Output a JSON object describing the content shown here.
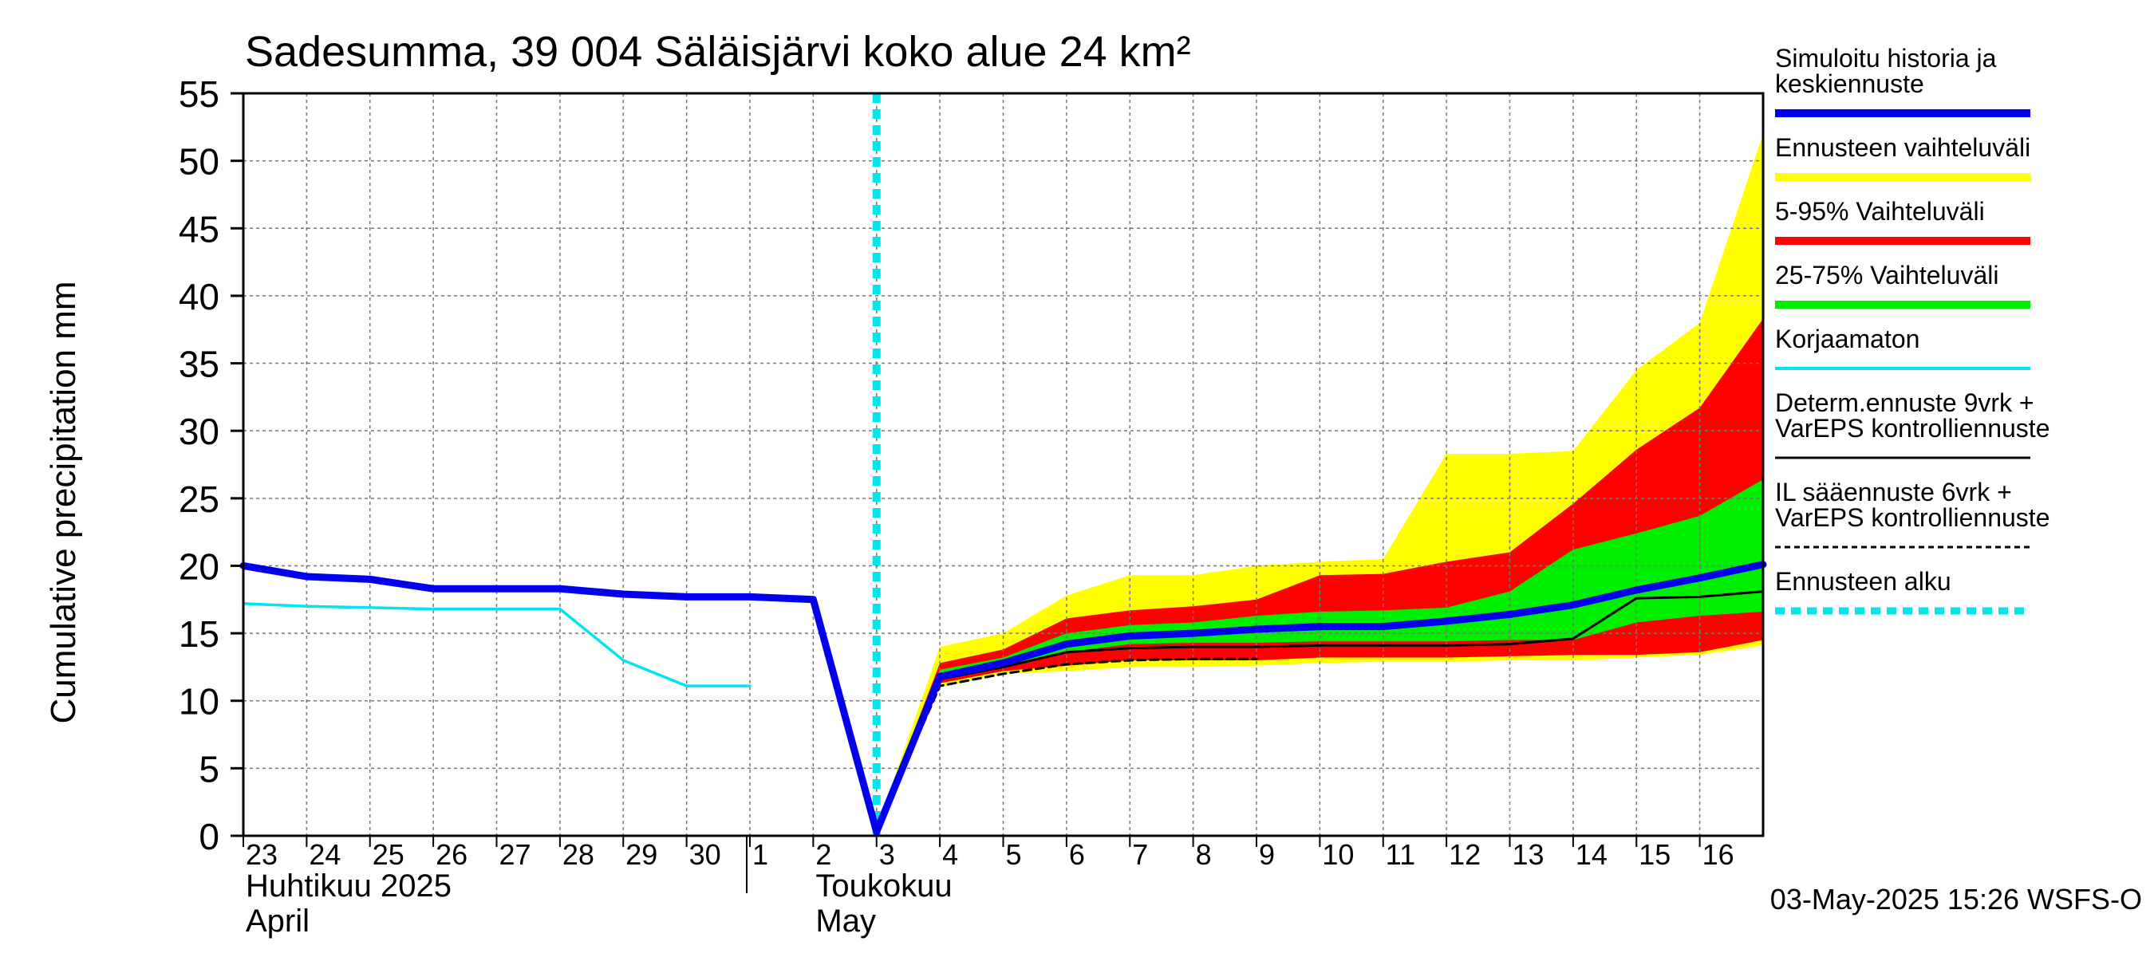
{
  "chart_data": {
    "type": "area",
    "title": "Sadesumma, 39 004 Säläisjärvi koko alue 24 km²",
    "ylabel": "Cumulative precipitation   mm",
    "ylim": [
      0,
      55
    ],
    "yticks": [
      0,
      5,
      10,
      15,
      20,
      25,
      30,
      35,
      40,
      45,
      50,
      55
    ],
    "x_range": [
      "2025-04-23",
      "2025-05-17"
    ],
    "grid": true,
    "day_ticks": [
      {
        "date": "2025-04-23",
        "label": "23"
      },
      {
        "date": "2025-04-24",
        "label": "24"
      },
      {
        "date": "2025-04-25",
        "label": "25"
      },
      {
        "date": "2025-04-26",
        "label": "26"
      },
      {
        "date": "2025-04-27",
        "label": "27"
      },
      {
        "date": "2025-04-28",
        "label": "28"
      },
      {
        "date": "2025-04-29",
        "label": "29"
      },
      {
        "date": "2025-04-30",
        "label": "30"
      },
      {
        "date": "2025-05-01",
        "label": "1"
      },
      {
        "date": "2025-05-02",
        "label": "2"
      },
      {
        "date": "2025-05-03",
        "label": "3"
      },
      {
        "date": "2025-05-04",
        "label": "4"
      },
      {
        "date": "2025-05-05",
        "label": "5"
      },
      {
        "date": "2025-05-06",
        "label": "6"
      },
      {
        "date": "2025-05-07",
        "label": "7"
      },
      {
        "date": "2025-05-08",
        "label": "8"
      },
      {
        "date": "2025-05-09",
        "label": "9"
      },
      {
        "date": "2025-05-10",
        "label": "10"
      },
      {
        "date": "2025-05-11",
        "label": "11"
      },
      {
        "date": "2025-05-12",
        "label": "12"
      },
      {
        "date": "2025-05-13",
        "label": "13"
      },
      {
        "date": "2025-05-14",
        "label": "14"
      },
      {
        "date": "2025-05-15",
        "label": "15"
      },
      {
        "date": "2025-05-16",
        "label": "16"
      }
    ],
    "month_labels": [
      {
        "date": "2025-04-23",
        "line1": "Huhtikuu  2025",
        "line2": "April"
      },
      {
        "date": "2025-05-02",
        "line1": "Toukokuu",
        "line2": "May"
      }
    ],
    "month_divider": "2025-05-01",
    "forecast_start": "2025-05-03",
    "forecast_dates": [
      "2025-05-03",
      "2025-05-04",
      "2025-05-05",
      "2025-05-06",
      "2025-05-07",
      "2025-05-08",
      "2025-05-09",
      "2025-05-10",
      "2025-05-11",
      "2025-05-12",
      "2025-05-13",
      "2025-05-14",
      "2025-05-15",
      "2025-05-16",
      "2025-05-17"
    ],
    "bands": [
      {
        "name": "Ennusteen vaihteluväli",
        "color": "#ffff00",
        "upper": [
          0.5,
          14,
          15,
          17.8,
          19.3,
          19.3,
          20,
          20.3,
          20.5,
          28.3,
          28.3,
          28.5,
          34.5,
          38,
          52
        ],
        "lower": [
          0.3,
          11,
          12,
          12.2,
          12.5,
          12.5,
          12.6,
          12.8,
          12.9,
          12.9,
          13,
          13,
          13.2,
          13.4,
          14.1
        ]
      },
      {
        "name": "5-95% Vaihteluväli",
        "color": "#ff0000",
        "upper": [
          0.5,
          12.8,
          13.8,
          16.1,
          16.7,
          17,
          17.5,
          19.3,
          19.4,
          20.3,
          21,
          24.6,
          28.6,
          31.7,
          38.3
        ],
        "lower": [
          0.3,
          11.3,
          12.2,
          12.6,
          13,
          13,
          13,
          13.2,
          13.2,
          13.2,
          13.3,
          13.4,
          13.4,
          13.6,
          14.5
        ]
      },
      {
        "name": "25-75% Vaihteluväli",
        "color": "#00ee00",
        "upper": [
          0.5,
          12.3,
          13.2,
          15,
          15.6,
          15.8,
          16.3,
          16.6,
          16.7,
          16.9,
          18.1,
          21.2,
          22.4,
          23.7,
          26.4
        ],
        "lower": [
          0.3,
          11.8,
          12.5,
          13.6,
          14.2,
          14.3,
          14.3,
          14.4,
          14.4,
          14.4,
          14.5,
          14.5,
          15.8,
          16.3,
          16.6
        ]
      }
    ],
    "series": [
      {
        "name": "Simuloitu historia ja keskiennuste",
        "color": "#0000ee",
        "style": "thick",
        "x": [
          "2025-04-23",
          "2025-04-24",
          "2025-04-25",
          "2025-04-26",
          "2025-04-27",
          "2025-04-28",
          "2025-04-29",
          "2025-04-30",
          "2025-05-01",
          "2025-05-02",
          "2025-05-03",
          "2025-05-04",
          "2025-05-05",
          "2025-05-06",
          "2025-05-07",
          "2025-05-08",
          "2025-05-09",
          "2025-05-10",
          "2025-05-11",
          "2025-05-12",
          "2025-05-13",
          "2025-05-14",
          "2025-05-15",
          "2025-05-16",
          "2025-05-17"
        ],
        "y": [
          20,
          19.2,
          19,
          18.3,
          18.3,
          18.3,
          17.9,
          17.7,
          17.7,
          17.5,
          0.3,
          11.8,
          12.8,
          14.2,
          14.8,
          15,
          15.3,
          15.5,
          15.5,
          15.9,
          16.4,
          17.1,
          18.2,
          19.1,
          20.1
        ]
      },
      {
        "name": "Korjaamaton",
        "color": "#00e5ee",
        "style": "thin",
        "x": [
          "2025-04-23",
          "2025-04-24",
          "2025-04-25",
          "2025-04-26",
          "2025-04-27",
          "2025-04-28",
          "2025-04-29",
          "2025-04-30",
          "2025-05-01"
        ],
        "y": [
          17.2,
          17,
          16.9,
          16.8,
          16.8,
          16.8,
          13,
          11.1,
          11.1
        ]
      },
      {
        "name": "Determ.ennuste 9vrk + VarEPS kontrolliennuste",
        "color": "#000000",
        "style": "solid",
        "x": [
          "2025-05-03",
          "2025-05-04",
          "2025-05-05",
          "2025-05-06",
          "2025-05-07",
          "2025-05-08",
          "2025-05-09",
          "2025-05-10",
          "2025-05-11",
          "2025-05-12",
          "2025-05-13",
          "2025-05-14",
          "2025-05-15",
          "2025-05-16",
          "2025-05-17"
        ],
        "y": [
          0.4,
          11.6,
          12.5,
          13.6,
          13.9,
          14,
          14,
          14.1,
          14.1,
          14.1,
          14.2,
          14.6,
          17.6,
          17.7,
          18.1
        ]
      },
      {
        "name": "IL sääennuste 6vrk  + VarEPS kontrolliennuste",
        "color": "#000000",
        "style": "dashed",
        "x": [
          "2025-05-03",
          "2025-05-04",
          "2025-05-05",
          "2025-05-06",
          "2025-05-07",
          "2025-05-08",
          "2025-05-09"
        ],
        "y": [
          0.4,
          11.1,
          12,
          12.7,
          13,
          13.1,
          13.1
        ]
      }
    ],
    "legend": {
      "placement": "right",
      "entries": [
        {
          "lines": [
            "Simuloitu historia ja",
            "keskiennuste"
          ],
          "color": "#0000ee",
          "style": "thick"
        },
        {
          "lines": [
            "Ennusteen vaihteluväli"
          ],
          "color": "#ffff00",
          "style": "thick"
        },
        {
          "lines": [
            "5-95% Vaihteluväli"
          ],
          "color": "#ff0000",
          "style": "thick"
        },
        {
          "lines": [
            "25-75% Vaihteluväli"
          ],
          "color": "#00ee00",
          "style": "thick"
        },
        {
          "lines": [
            "Korjaamaton"
          ],
          "color": "#00e5ee",
          "style": "thin"
        },
        {
          "lines": [
            "Determ.ennuste 9vrk +",
            "VarEPS kontrolliennuste"
          ],
          "color": "#000000",
          "style": "solid"
        },
        {
          "lines": [
            "IL sääennuste 6vrk  +",
            "  VarEPS kontrolliennuste"
          ],
          "color": "#000000",
          "style": "dashed"
        },
        {
          "lines": [
            "Ennusteen alku"
          ],
          "color": "#00e5ee",
          "style": "dotted"
        }
      ]
    },
    "footer": "03-May-2025 15:26 WSFS-O"
  }
}
